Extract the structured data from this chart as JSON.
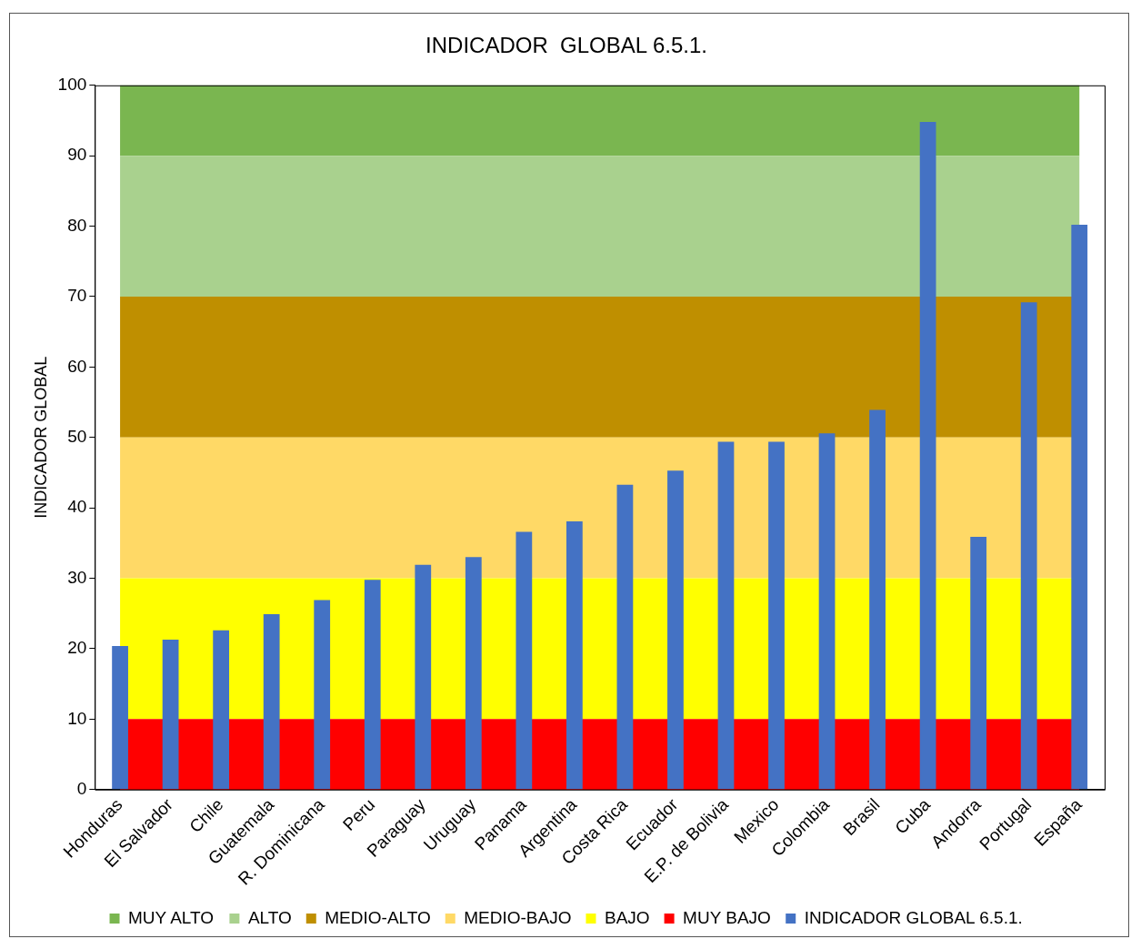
{
  "chart_data": {
    "type": "bar",
    "title": "INDICADOR  GLOBAL 6.5.1.",
    "ylabel": "INDICADOR GLOBAL",
    "categories": [
      "Honduras",
      "El Salvador",
      "Chile",
      "Guatemala",
      "R. Dominicana",
      "Peru",
      "Paraguay",
      "Uruguay",
      "Panama",
      "Argentina",
      "Costa Rica",
      "Ecuador",
      "E.P. de Bolivia",
      "Mexico",
      "Colombia",
      "Brasil",
      "Cuba",
      "Andorra",
      "Portugal",
      "España"
    ],
    "series": [
      {
        "name": "INDICADOR GLOBAL 6.5.1.",
        "color": "#4472c4",
        "values": [
          20.4,
          21.3,
          22.6,
          24.9,
          26.9,
          29.8,
          31.9,
          33.0,
          36.6,
          38.1,
          43.3,
          45.3,
          49.4,
          49.4,
          50.6,
          53.9,
          94.8,
          35.9,
          69.2,
          80.2
        ]
      }
    ],
    "bands": [
      {
        "axis": "y",
        "from": 90,
        "to": 100,
        "label": "MUY ALTO",
        "color": "#7ab650"
      },
      {
        "axis": "y",
        "from": 70,
        "to": 90,
        "label": "ALTO",
        "color": "#a9d18e"
      },
      {
        "axis": "y",
        "from": 50,
        "to": 70,
        "label": "MEDIO-ALTO",
        "color": "#bf8f00"
      },
      {
        "axis": "y",
        "from": 30,
        "to": 50,
        "label": "MEDIO-BAJO",
        "color": "#ffd966"
      },
      {
        "axis": "y",
        "from": 10,
        "to": 30,
        "label": "BAJO",
        "color": "#ffff00"
      },
      {
        "axis": "y",
        "from": 0,
        "to": 10,
        "label": "MUY BAJO",
        "color": "#ff0000"
      }
    ],
    "ylim": [
      0,
      100
    ],
    "yticks": [
      0,
      10,
      20,
      30,
      40,
      50,
      60,
      70,
      80,
      90,
      100
    ],
    "grid": false,
    "legend": "bottom"
  }
}
